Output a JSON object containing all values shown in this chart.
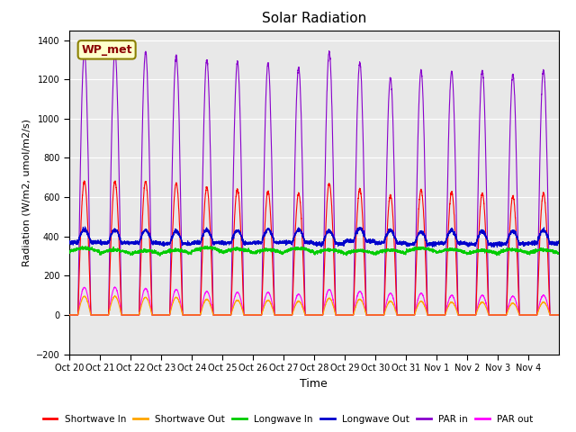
{
  "title": "Solar Radiation",
  "ylabel": "Radiation (W/m2, umol/m2/s)",
  "xlabel": "Time",
  "ylim": [
    -200,
    1450
  ],
  "yticks": [
    -200,
    0,
    200,
    400,
    600,
    800,
    1000,
    1200,
    1400
  ],
  "bg_color": "#e8e8e8",
  "annotation_text": "WP_met",
  "legend_entries": [
    {
      "label": "Shortwave In",
      "color": "#ff0000"
    },
    {
      "label": "Shortwave Out",
      "color": "#ffa500"
    },
    {
      "label": "Longwave In",
      "color": "#00cc00"
    },
    {
      "label": "Longwave Out",
      "color": "#0000cc"
    },
    {
      "label": "PAR in",
      "color": "#8800cc"
    },
    {
      "label": "PAR out",
      "color": "#ff00ff"
    }
  ],
  "n_days": 16,
  "points_per_day": 288,
  "x_tick_labels": [
    "Oct 20",
    "Oct 21",
    "Oct 22",
    "Oct 23",
    "Oct 24",
    "Oct 25",
    "Oct 26",
    "Oct 27",
    "Oct 28",
    "Oct 29",
    "Oct 30",
    "Oct 31",
    "Nov 1",
    "Nov 2",
    "Nov 3",
    "Nov 4"
  ],
  "gridcolor": "#ffffff",
  "linewidth": 0.8
}
